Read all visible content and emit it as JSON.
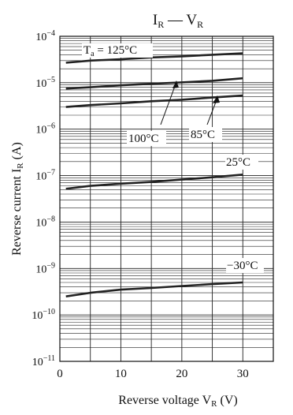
{
  "chart_data": {
    "type": "line",
    "title_main": "I",
    "title_sub": "R",
    "title_sep": " — ",
    "title_main2": "V",
    "title_sub2": "R",
    "xlabel": "Reverse voltage  V",
    "xlabel_sub": "R",
    "xlabel_unit": "(V)",
    "ylabel": "Reverse current  I",
    "ylabel_sub": "R",
    "ylabel_unit": "(A)",
    "xlim": [
      0,
      35
    ],
    "ylim_log10": [
      -11,
      -4
    ],
    "y_scale": "log",
    "x_ticks": [
      {
        "value": 0,
        "label": "0"
      },
      {
        "value": 10,
        "label": "10"
      },
      {
        "value": 20,
        "label": "20"
      },
      {
        "value": 30,
        "label": "30"
      }
    ],
    "y_ticks": [
      {
        "exp": -4,
        "base": "10",
        "sup": "−4"
      },
      {
        "exp": -5,
        "base": "10",
        "sup": "−5"
      },
      {
        "exp": -6,
        "base": "10",
        "sup": "−6"
      },
      {
        "exp": -7,
        "base": "10",
        "sup": "−7"
      },
      {
        "exp": -8,
        "base": "10",
        "sup": "−8"
      },
      {
        "exp": -9,
        "base": "10",
        "sup": "−9"
      },
      {
        "exp": -10,
        "base": "10",
        "sup": "−10"
      },
      {
        "exp": -11,
        "base": "10",
        "sup": "−11"
      }
    ],
    "grid": true,
    "series": [
      {
        "name": "Ta = 125°C",
        "x": [
          1,
          5,
          10,
          15,
          20,
          25,
          30
        ],
        "y": [
          2.7e-05,
          3e-05,
          3.2e-05,
          3.5e-05,
          3.7e-05,
          4e-05,
          4.3e-05
        ]
      },
      {
        "name": "100°C",
        "x": [
          1,
          5,
          10,
          15,
          20,
          25,
          30
        ],
        "y": [
          7.5e-06,
          8e-06,
          8.8e-06,
          9.5e-06,
          1.02e-05,
          1.1e-05,
          1.25e-05
        ]
      },
      {
        "name": "85°C",
        "x": [
          1,
          5,
          10,
          15,
          20,
          25,
          30
        ],
        "y": [
          3e-06,
          3.3e-06,
          3.6e-06,
          4e-06,
          4.3e-06,
          4.8e-06,
          5.3e-06
        ]
      },
      {
        "name": "25°C",
        "x": [
          1,
          5,
          10,
          15,
          20,
          25,
          30
        ],
        "y": [
          5.2e-08,
          6e-08,
          6.7e-08,
          7.3e-08,
          8.2e-08,
          9.2e-08,
          1.05e-07
        ]
      },
      {
        "name": "−30°C",
        "x": [
          1,
          5,
          10,
          15,
          20,
          25,
          30
        ],
        "y": [
          2.5e-10,
          3e-10,
          3.5e-10,
          3.8e-10,
          4.2e-10,
          4.6e-10,
          5e-10
        ]
      }
    ],
    "annotations": {
      "t125_main": "T",
      "t125_sub": "a",
      "t125_rest": " = 125°C",
      "t100": "100°C",
      "t85": "85°C",
      "t25": "25°C",
      "tm30": "−30°C"
    }
  }
}
